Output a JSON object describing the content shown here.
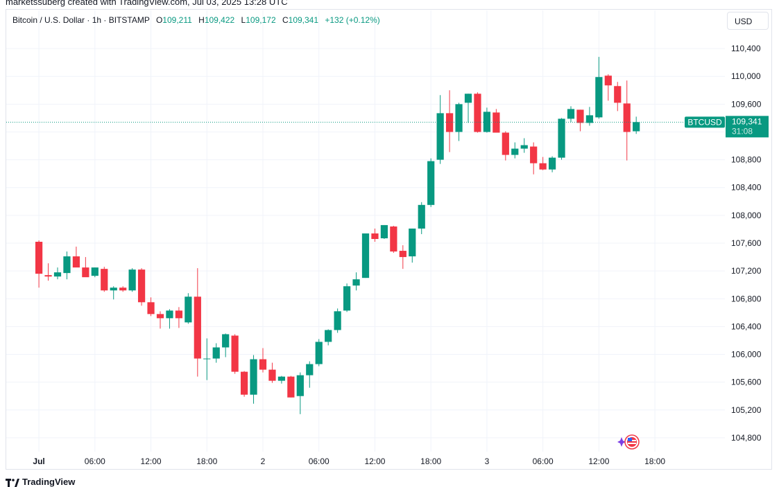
{
  "header": {
    "credit": "marketssuberg created with TradingView.com, Jul 03, 2025 13:28 UTC"
  },
  "legend": {
    "symbol": "Bitcoin / U.S. Dollar · 1h · BITSTAMP",
    "open_label": "O",
    "open": "109,211",
    "high_label": "H",
    "high": "109,422",
    "low_label": "L",
    "low": "109,172",
    "close_label": "C",
    "close": "109,341",
    "change": "+132 (+0.12%)"
  },
  "currency_button": "USD",
  "price_label": {
    "ticker": "BTCUSD",
    "price": "109,341",
    "countdown": "31:08"
  },
  "footer": {
    "logo_text": "TradingView"
  },
  "icons": [
    "tradingview-logo-icon",
    "flag-icon",
    "spark-icon"
  ],
  "colors": {
    "up": "#089981",
    "down": "#f23645",
    "grid": "#f0f3fa",
    "axis_text": "#131722"
  },
  "chart_data": {
    "type": "candlestick",
    "symbol": "BTCUSD",
    "interval": "1h",
    "ylim": [
      104600,
      110650
    ],
    "y_ticks": [
      104800,
      105200,
      105600,
      106000,
      106400,
      106800,
      107200,
      107600,
      108000,
      108400,
      108800,
      109200,
      109600,
      110000,
      110400
    ],
    "y_tick_labels": [
      "104,800",
      "105,200",
      "105,600",
      "106,000",
      "106,400",
      "106,800",
      "107,200",
      "107,600",
      "108,000",
      "108,400",
      "108,800",
      "",
      "109,600",
      "110,000",
      "110,400"
    ],
    "x_start_index": -3.5,
    "x_end_index": 73.5,
    "x_ticks": [
      {
        "index": 0,
        "label": "Jul"
      },
      {
        "index": 6,
        "label": "06:00"
      },
      {
        "index": 12,
        "label": "12:00"
      },
      {
        "index": 18,
        "label": "18:00"
      },
      {
        "index": 24,
        "label": "2"
      },
      {
        "index": 30,
        "label": "06:00"
      },
      {
        "index": 36,
        "label": "12:00"
      },
      {
        "index": 42,
        "label": "18:00"
      },
      {
        "index": 48,
        "label": "3"
      },
      {
        "index": 54,
        "label": "06:00"
      },
      {
        "index": 60,
        "label": "12:00"
      },
      {
        "index": 66,
        "label": "18:00"
      }
    ],
    "last_price": 109341,
    "candles": [
      {
        "o": 107620,
        "h": 107640,
        "l": 106960,
        "c": 107160
      },
      {
        "o": 107140,
        "h": 107310,
        "l": 107060,
        "c": 107120
      },
      {
        "o": 107120,
        "h": 107250,
        "l": 107080,
        "c": 107180
      },
      {
        "o": 107170,
        "h": 107480,
        "l": 107080,
        "c": 107410
      },
      {
        "o": 107410,
        "h": 107550,
        "l": 107260,
        "c": 107250
      },
      {
        "o": 107250,
        "h": 107400,
        "l": 107120,
        "c": 107110
      },
      {
        "o": 107130,
        "h": 107250,
        "l": 107110,
        "c": 107250
      },
      {
        "o": 107230,
        "h": 107260,
        "l": 106900,
        "c": 106920
      },
      {
        "o": 106920,
        "h": 106980,
        "l": 106790,
        "c": 106960
      },
      {
        "o": 106960,
        "h": 106980,
        "l": 106900,
        "c": 106920
      },
      {
        "o": 106920,
        "h": 107240,
        "l": 106900,
        "c": 107220
      },
      {
        "o": 107220,
        "h": 107240,
        "l": 106700,
        "c": 106750
      },
      {
        "o": 106750,
        "h": 106820,
        "l": 106550,
        "c": 106580
      },
      {
        "o": 106580,
        "h": 106620,
        "l": 106370,
        "c": 106520
      },
      {
        "o": 106520,
        "h": 106650,
        "l": 106370,
        "c": 106630
      },
      {
        "o": 106630,
        "h": 106680,
        "l": 106380,
        "c": 106520
      },
      {
        "o": 106460,
        "h": 106880,
        "l": 106440,
        "c": 106830
      },
      {
        "o": 106830,
        "h": 107240,
        "l": 105680,
        "c": 105940
      },
      {
        "o": 105940,
        "h": 106230,
        "l": 105630,
        "c": 105940
      },
      {
        "o": 105940,
        "h": 106160,
        "l": 105880,
        "c": 106100
      },
      {
        "o": 106100,
        "h": 106300,
        "l": 105960,
        "c": 106290
      },
      {
        "o": 106270,
        "h": 106290,
        "l": 105720,
        "c": 105750
      },
      {
        "o": 105750,
        "h": 105760,
        "l": 105390,
        "c": 105420
      },
      {
        "o": 105420,
        "h": 105990,
        "l": 105290,
        "c": 105930
      },
      {
        "o": 105930,
        "h": 106090,
        "l": 105740,
        "c": 105780
      },
      {
        "o": 105780,
        "h": 105880,
        "l": 105590,
        "c": 105620
      },
      {
        "o": 105620,
        "h": 105690,
        "l": 105580,
        "c": 105680
      },
      {
        "o": 105680,
        "h": 105690,
        "l": 105380,
        "c": 105380
      },
      {
        "o": 105400,
        "h": 105740,
        "l": 105140,
        "c": 105700
      },
      {
        "o": 105700,
        "h": 105900,
        "l": 105520,
        "c": 105860
      },
      {
        "o": 105860,
        "h": 106220,
        "l": 105830,
        "c": 106180
      },
      {
        "o": 106180,
        "h": 106360,
        "l": 106130,
        "c": 106350
      },
      {
        "o": 106350,
        "h": 106660,
        "l": 106310,
        "c": 106620
      },
      {
        "o": 106630,
        "h": 107020,
        "l": 106610,
        "c": 106980
      },
      {
        "o": 106990,
        "h": 107180,
        "l": 106920,
        "c": 107080
      },
      {
        "o": 107100,
        "h": 107720,
        "l": 107100,
        "c": 107740
      },
      {
        "o": 107740,
        "h": 107810,
        "l": 107620,
        "c": 107660
      },
      {
        "o": 107670,
        "h": 107860,
        "l": 107660,
        "c": 107860
      },
      {
        "o": 107840,
        "h": 107850,
        "l": 107460,
        "c": 107480
      },
      {
        "o": 107490,
        "h": 107570,
        "l": 107230,
        "c": 107400
      },
      {
        "o": 107410,
        "h": 107810,
        "l": 107320,
        "c": 107810
      },
      {
        "o": 107810,
        "h": 108190,
        "l": 107730,
        "c": 108150
      },
      {
        "o": 108150,
        "h": 108820,
        "l": 108120,
        "c": 108780
      },
      {
        "o": 108800,
        "h": 109730,
        "l": 108740,
        "c": 109470
      },
      {
        "o": 109470,
        "h": 109800,
        "l": 108910,
        "c": 109200
      },
      {
        "o": 109200,
        "h": 109620,
        "l": 109070,
        "c": 109600
      },
      {
        "o": 109620,
        "h": 109750,
        "l": 109330,
        "c": 109750
      },
      {
        "o": 109750,
        "h": 109770,
        "l": 109190,
        "c": 109200
      },
      {
        "o": 109200,
        "h": 109550,
        "l": 109190,
        "c": 109490
      },
      {
        "o": 109480,
        "h": 109530,
        "l": 109190,
        "c": 109190
      },
      {
        "o": 109190,
        "h": 109210,
        "l": 108790,
        "c": 108870
      },
      {
        "o": 108870,
        "h": 109050,
        "l": 108820,
        "c": 108960
      },
      {
        "o": 108960,
        "h": 109110,
        "l": 108900,
        "c": 109010
      },
      {
        "o": 108990,
        "h": 109050,
        "l": 108590,
        "c": 108750
      },
      {
        "o": 108750,
        "h": 108840,
        "l": 108650,
        "c": 108660
      },
      {
        "o": 108660,
        "h": 108850,
        "l": 108620,
        "c": 108830
      },
      {
        "o": 108830,
        "h": 109400,
        "l": 108800,
        "c": 109390
      },
      {
        "o": 109390,
        "h": 109570,
        "l": 109340,
        "c": 109530
      },
      {
        "o": 109520,
        "h": 109520,
        "l": 109210,
        "c": 109330
      },
      {
        "o": 109330,
        "h": 109560,
        "l": 109290,
        "c": 109440
      },
      {
        "o": 109410,
        "h": 110280,
        "l": 109390,
        "c": 109990
      },
      {
        "o": 110010,
        "h": 110030,
        "l": 109650,
        "c": 109870
      },
      {
        "o": 109860,
        "h": 109920,
        "l": 109500,
        "c": 109620
      },
      {
        "o": 109610,
        "h": 109940,
        "l": 108790,
        "c": 109200
      },
      {
        "o": 109210,
        "h": 109420,
        "l": 109172,
        "c": 109341
      }
    ]
  }
}
